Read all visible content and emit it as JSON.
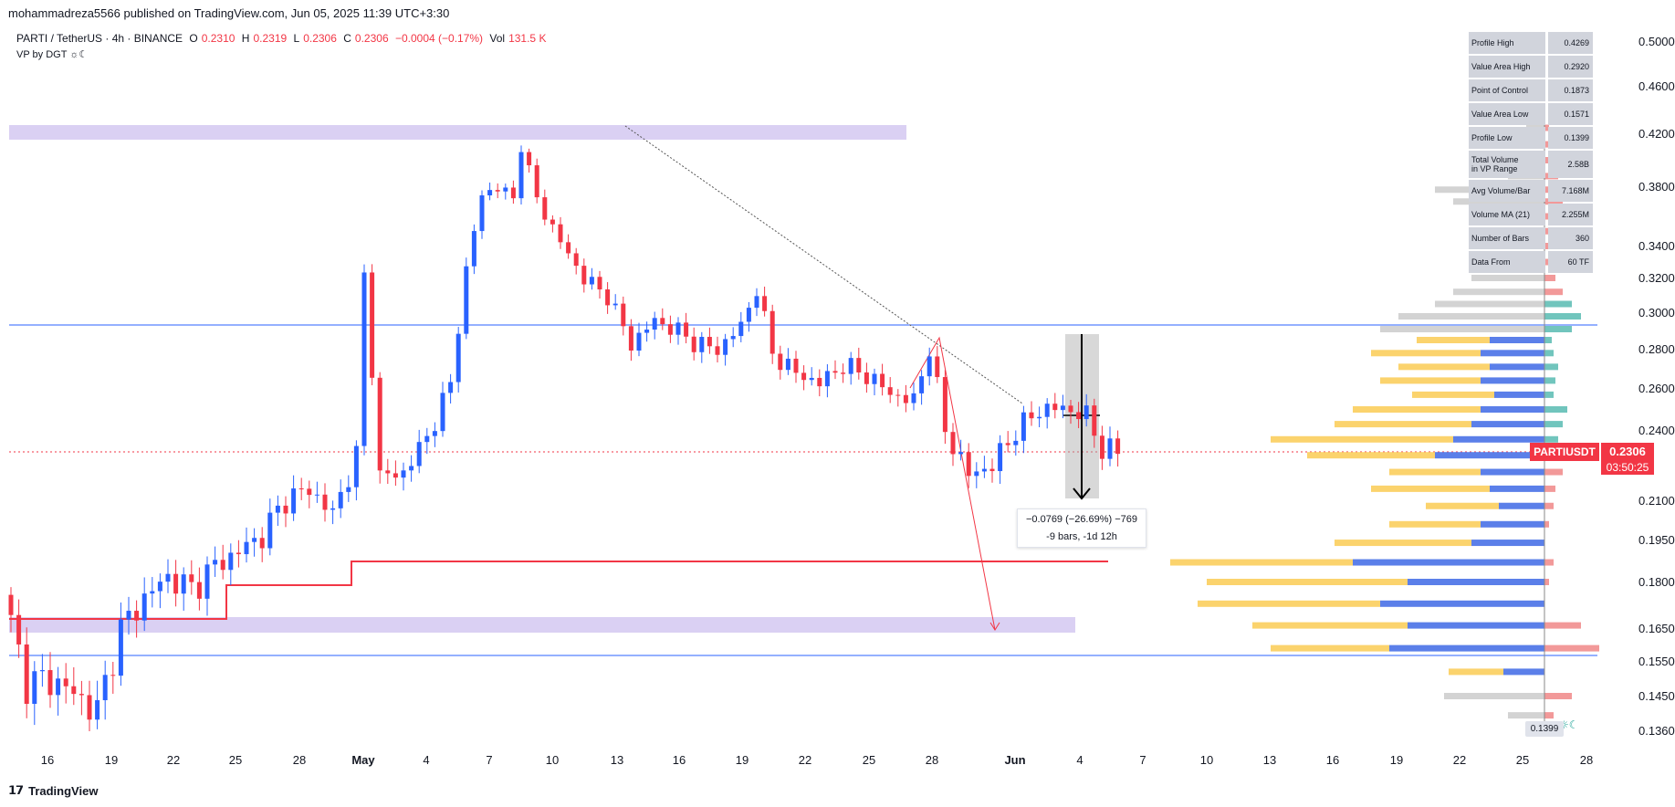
{
  "header": "mohammadreza5566 published on TradingView.com, Jun 05, 2025 11:39 UTC+3:30",
  "symbol": {
    "name": "PARTI / TetherUS · 4h · BINANCE",
    "o_label": "O",
    "o": "0.2310",
    "h_label": "H",
    "h": "0.2319",
    "l_label": "L",
    "l": "0.2306",
    "c_label": "C",
    "c": "0.2306",
    "change": "−0.0004 (−0.17%)",
    "vol_label": "Vol",
    "vol": "131.5 K"
  },
  "indicator": "VP by DGT ☼☾",
  "stats": [
    {
      "key": "Profile High",
      "value": "0.4269"
    },
    {
      "key": "Value Area High",
      "value": "0.2920"
    },
    {
      "key": "Point of Control",
      "value": "0.1873"
    },
    {
      "key": "Value Area Low",
      "value": "0.1571"
    },
    {
      "key": "Profile Low",
      "value": "0.1399"
    },
    {
      "key": "Total Volume\nin VP Range",
      "value": "2.58B"
    },
    {
      "key": "Avg Volume/Bar",
      "value": "7.168M"
    },
    {
      "key": "Volume MA (21)",
      "value": "2.255M"
    },
    {
      "key": "Number of Bars",
      "value": "360"
    },
    {
      "key": "Data From",
      "value": "60 TF"
    }
  ],
  "price_badge": {
    "symbol": "PARTIUSDT",
    "price": "0.2306",
    "countdown": "03:50:25"
  },
  "measure": {
    "line1": "−0.0769 (−26.69%) −769",
    "line2": "-9 bars, -1d 12h"
  },
  "vp_high_label": "0.4269",
  "vp_low_label": "0.1399",
  "footer": "TradingView",
  "colors": {
    "up": "#2962ff",
    "down": "#f23645",
    "vp_up": "#fbd36d",
    "vp_blue": "#5b7fe9",
    "vp_gray": "#a8a8a8",
    "vp_green": "#4db6ac",
    "vp_red": "#ef7f7f"
  },
  "chart_data": {
    "type": "candlestick",
    "y_axis_ticks": [
      "0.5000",
      "0.4600",
      "0.4200",
      "0.3800",
      "0.3400",
      "0.3200",
      "0.3000",
      "0.2800",
      "0.2600",
      "0.2400",
      "0.2306",
      "0.2100",
      "0.1950",
      "0.1800",
      "0.1650",
      "0.1550",
      "0.1450",
      "0.1360"
    ],
    "y_axis_numeric": [
      0.5,
      0.46,
      0.42,
      0.38,
      0.34,
      0.32,
      0.3,
      0.28,
      0.26,
      0.24,
      0.2306,
      0.21,
      0.195,
      0.18,
      0.165,
      0.155,
      0.145,
      0.136
    ],
    "x_axis_ticks": [
      "16",
      "19",
      "22",
      "25",
      "28",
      "May",
      "4",
      "7",
      "10",
      "13",
      "16",
      "19",
      "22",
      "25",
      "28",
      "Jun",
      "4",
      "7",
      "10",
      "13",
      "16",
      "19",
      "22",
      "25",
      "28"
    ],
    "last_price": 0.2306,
    "price_path": [
      [
        0,
        0.176
      ],
      [
        3,
        0.149
      ],
      [
        6,
        0.15
      ],
      [
        9,
        0.146
      ],
      [
        12,
        0.141
      ],
      [
        15,
        0.165
      ],
      [
        18,
        0.175
      ],
      [
        21,
        0.182
      ],
      [
        24,
        0.178
      ],
      [
        27,
        0.186
      ],
      [
        30,
        0.191
      ],
      [
        33,
        0.197
      ],
      [
        36,
        0.211
      ],
      [
        39,
        0.215
      ],
      [
        42,
        0.205
      ],
      [
        45,
        0.229
      ],
      [
        46,
        0.322
      ],
      [
        48,
        0.22
      ],
      [
        51,
        0.222
      ],
      [
        54,
        0.237
      ],
      [
        57,
        0.262
      ],
      [
        59,
        0.325
      ],
      [
        61,
        0.375
      ],
      [
        63,
        0.38
      ],
      [
        65,
        0.372
      ],
      [
        66,
        0.412
      ],
      [
        68,
        0.372
      ],
      [
        71,
        0.343
      ],
      [
        74,
        0.32
      ],
      [
        77,
        0.31
      ],
      [
        80,
        0.283
      ],
      [
        83,
        0.296
      ],
      [
        86,
        0.29
      ],
      [
        88,
        0.284
      ],
      [
        91,
        0.28
      ],
      [
        94,
        0.293
      ],
      [
        96,
        0.314
      ],
      [
        98,
        0.278
      ],
      [
        101,
        0.268
      ],
      [
        104,
        0.263
      ],
      [
        107,
        0.272
      ],
      [
        110,
        0.267
      ],
      [
        113,
        0.258
      ],
      [
        116,
        0.254
      ],
      [
        118,
        0.281
      ],
      [
        120,
        0.24
      ],
      [
        123,
        0.221
      ],
      [
        126,
        0.225
      ],
      [
        129,
        0.24
      ],
      [
        132,
        0.25
      ],
      [
        135,
        0.251
      ],
      [
        138,
        0.247
      ],
      [
        140,
        0.232
      ],
      [
        142,
        0.2306
      ]
    ]
  }
}
